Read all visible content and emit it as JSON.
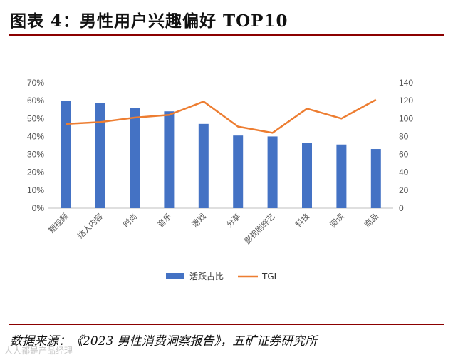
{
  "title": "图表 4：男性用户兴趣偏好 TOP10",
  "source": "数据来源：《2023 男性消费洞察报告》，五矿证券研究所",
  "watermark": "人人都是产品经理",
  "colors": {
    "bar": "#4472C4",
    "line": "#ED7D31",
    "rule": "#8b0000"
  },
  "chart_data": {
    "type": "bar+line",
    "categories": [
      "短视频",
      "达人内容",
      "时尚",
      "音乐",
      "游戏",
      "分享",
      "影视剧综艺",
      "科技",
      "阅读",
      "商品"
    ],
    "series": [
      {
        "name": "活跃占比",
        "type": "bar",
        "axis": "left",
        "values": [
          0.6,
          0.585,
          0.56,
          0.54,
          0.47,
          0.405,
          0.4,
          0.365,
          0.355,
          0.33
        ]
      },
      {
        "name": "TGI",
        "type": "line",
        "axis": "right",
        "values": [
          94,
          96,
          101,
          104,
          119,
          91,
          84,
          111,
          100,
          121
        ]
      }
    ],
    "left_axis": {
      "ticks": [
        "70%",
        "60%",
        "50%",
        "40%",
        "30%",
        "20%",
        "10%",
        "0%"
      ],
      "ylim": [
        0,
        0.7
      ]
    },
    "right_axis": {
      "ticks": [
        "140",
        "120",
        "100",
        "80",
        "60",
        "40",
        "20",
        "0"
      ],
      "ylim": [
        0,
        140
      ]
    },
    "legend": {
      "position": "bottom",
      "entries": [
        "活跃占比",
        "TGI"
      ]
    },
    "grid": false
  }
}
